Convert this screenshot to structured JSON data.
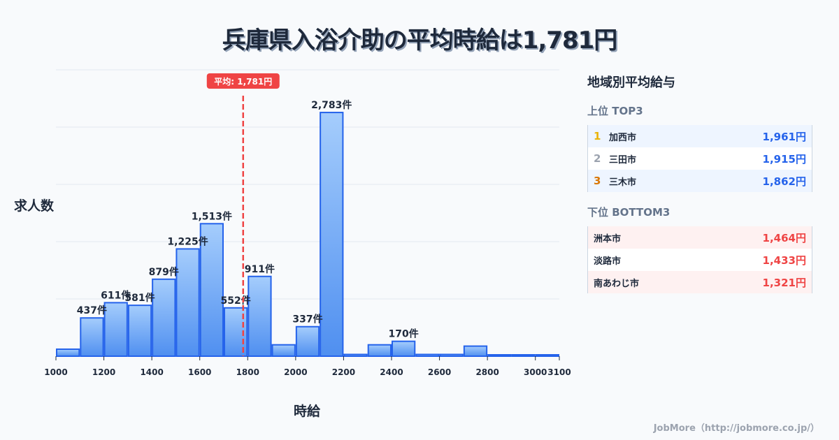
{
  "title": "兵庫県入浴介助の平均時給は1,781円",
  "chart_data": {
    "type": "bar",
    "title": "兵庫県入浴介助の平均時給は1,781円",
    "xlabel": "時給",
    "ylabel": "求人数",
    "bin_edges": [
      1000,
      1100,
      1200,
      1300,
      1400,
      1500,
      1600,
      1700,
      1800,
      1900,
      2000,
      2100,
      2200,
      2300,
      2400,
      2500,
      2600,
      2700,
      2800,
      2900,
      3000,
      3100
    ],
    "categories": [
      "1000-1100",
      "1100-1200",
      "1200-1300",
      "1300-1400",
      "1400-1500",
      "1500-1600",
      "1600-1700",
      "1700-1800",
      "1800-1900",
      "1900-2000",
      "2000-2100",
      "2100-2200",
      "2200-2300",
      "2300-2400",
      "2400-2500",
      "2500-2600",
      "2600-2700",
      "2700-2800",
      "2800-2900",
      "2900-3000",
      "3000-3100"
    ],
    "values": [
      80,
      437,
      611,
      581,
      879,
      1225,
      1513,
      552,
      911,
      130,
      337,
      2783,
      20,
      130,
      170,
      20,
      20,
      115,
      8,
      8,
      8
    ],
    "data_labels": [
      "",
      "437件",
      "611件",
      "581件",
      "879件",
      "1,225件",
      "1,513件",
      "552件",
      "911件",
      "",
      "337件",
      "2,783件",
      "",
      "",
      "170件",
      "",
      "",
      "",
      "",
      "",
      ""
    ],
    "x_ticks": [
      1000,
      1200,
      1400,
      1600,
      1800,
      2000,
      2200,
      2400,
      2600,
      2800,
      3000,
      3100
    ],
    "xlim": [
      1000,
      3100
    ],
    "ylim": [
      0,
      3270
    ],
    "grid": true,
    "mean": {
      "value": 1781,
      "label": "平均: 1,781円"
    },
    "colors": {
      "bar_fill_top": "#a5cdfc",
      "bar_fill_bottom": "#4f8ff0",
      "bar_stroke": "#2563eb",
      "mean_line": "#ef4444",
      "grid": "#e2e8f0"
    }
  },
  "axis": {
    "xlabel": "時給",
    "ylabel": "求人数"
  },
  "panel": {
    "title": "地域別平均給与",
    "top_title": "上位 TOP3",
    "top": [
      {
        "rank": "1",
        "city": "加西市",
        "value": "1,961円",
        "rank_color": "#eab308"
      },
      {
        "rank": "2",
        "city": "三田市",
        "value": "1,915円",
        "rank_color": "#9ca3af"
      },
      {
        "rank": "3",
        "city": "三木市",
        "value": "1,862円",
        "rank_color": "#d97706"
      }
    ],
    "bottom_title": "下位 BOTTOM3",
    "bottom": [
      {
        "city": "洲本市",
        "value": "1,464円"
      },
      {
        "city": "淡路市",
        "value": "1,433円"
      },
      {
        "city": "南あわじ市",
        "value": "1,321円"
      }
    ]
  },
  "footer": "JobMore（http://jobmore.co.jp/）"
}
